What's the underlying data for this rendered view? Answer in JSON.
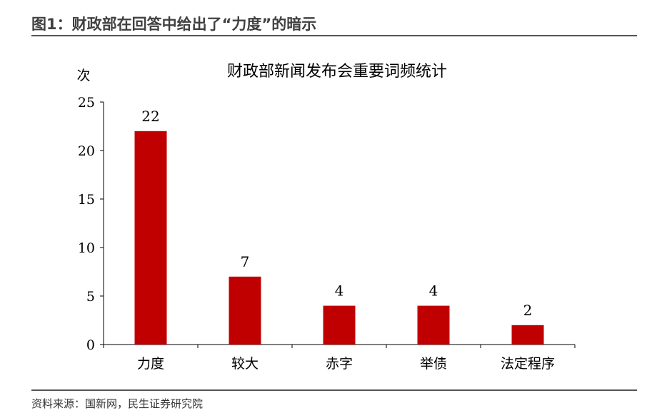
{
  "figure": {
    "title": "图1：财政部在回答中给出了“力度”的暗示",
    "source": "资料来源：国新网，民生证券研究院"
  },
  "chart_data": {
    "type": "bar",
    "title": "财政部新闻发布会重要词频统计",
    "ylabel": "次",
    "xlabel": "",
    "categories": [
      "力度",
      "较大",
      "赤字",
      "举债",
      "法定程序"
    ],
    "values": [
      22,
      7,
      4,
      4,
      2
    ],
    "ylim": [
      0,
      25
    ],
    "yticks": [
      0,
      5,
      10,
      15,
      20,
      25
    ],
    "bar_color": "#C00000",
    "data_labels": true,
    "grid": false,
    "legend": "none"
  }
}
